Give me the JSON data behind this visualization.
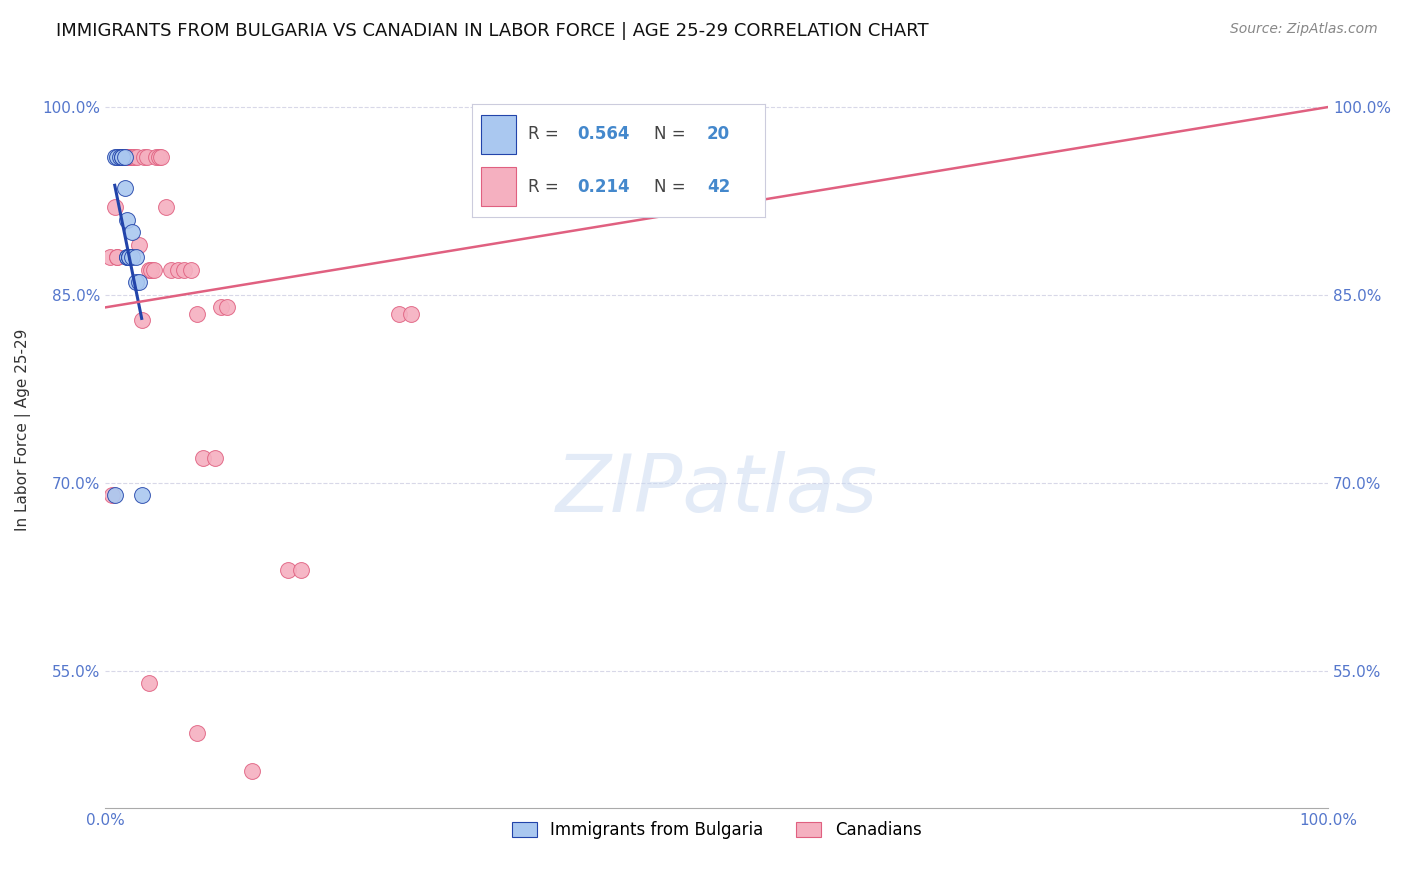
{
  "title": "IMMIGRANTS FROM BULGARIA VS CANADIAN IN LABOR FORCE | AGE 25-29 CORRELATION CHART",
  "source": "Source: ZipAtlas.com",
  "ylabel": "In Labor Force | Age 25-29",
  "xlim": [
    0.0,
    1.0
  ],
  "ylim": [
    0.44,
    1.045
  ],
  "yticks": [
    0.55,
    0.7,
    0.85,
    1.0
  ],
  "ytick_labels": [
    "55.0%",
    "70.0%",
    "85.0%",
    "100.0%"
  ],
  "xticks": [
    0.0,
    1.0
  ],
  "xtick_labels": [
    "0.0%",
    "100.0%"
  ],
  "bg_color": "#ffffff",
  "grid_color": "#d8d8e8",
  "blue_color": "#aac8f0",
  "pink_color": "#f5b0c0",
  "blue_line_color": "#2244aa",
  "pink_line_color": "#e06080",
  "blue_points_x": [
    0.008,
    0.01,
    0.012,
    0.014,
    0.014,
    0.016,
    0.016,
    0.018,
    0.018,
    0.018,
    0.02,
    0.02,
    0.02,
    0.022,
    0.022,
    0.025,
    0.025,
    0.028,
    0.008,
    0.03
  ],
  "blue_points_y": [
    0.96,
    0.96,
    0.96,
    0.96,
    0.96,
    0.935,
    0.96,
    0.88,
    0.91,
    0.88,
    0.88,
    0.88,
    0.88,
    0.88,
    0.9,
    0.88,
    0.86,
    0.86,
    0.69,
    0.69
  ],
  "pink_points_x": [
    0.004,
    0.006,
    0.008,
    0.01,
    0.01,
    0.012,
    0.012,
    0.016,
    0.016,
    0.018,
    0.02,
    0.02,
    0.022,
    0.024,
    0.026,
    0.028,
    0.03,
    0.032,
    0.034,
    0.036,
    0.038,
    0.04,
    0.042,
    0.044,
    0.046,
    0.05,
    0.054,
    0.06,
    0.065,
    0.07,
    0.075,
    0.08,
    0.09,
    0.095,
    0.1,
    0.15,
    0.16,
    0.24,
    0.25,
    0.036,
    0.075,
    0.12
  ],
  "pink_points_y": [
    0.88,
    0.69,
    0.92,
    0.88,
    0.88,
    0.96,
    0.96,
    0.96,
    0.96,
    0.96,
    0.96,
    0.96,
    0.96,
    0.96,
    0.96,
    0.89,
    0.83,
    0.96,
    0.96,
    0.87,
    0.87,
    0.87,
    0.96,
    0.96,
    0.96,
    0.92,
    0.87,
    0.87,
    0.87,
    0.87,
    0.835,
    0.72,
    0.72,
    0.84,
    0.84,
    0.63,
    0.63,
    0.835,
    0.835,
    0.54,
    0.5,
    0.47
  ],
  "blue_line_x": [
    0.008,
    0.03
  ],
  "pink_line_x": [
    0.0,
    1.0
  ],
  "pink_line_y": [
    0.84,
    1.0
  ]
}
